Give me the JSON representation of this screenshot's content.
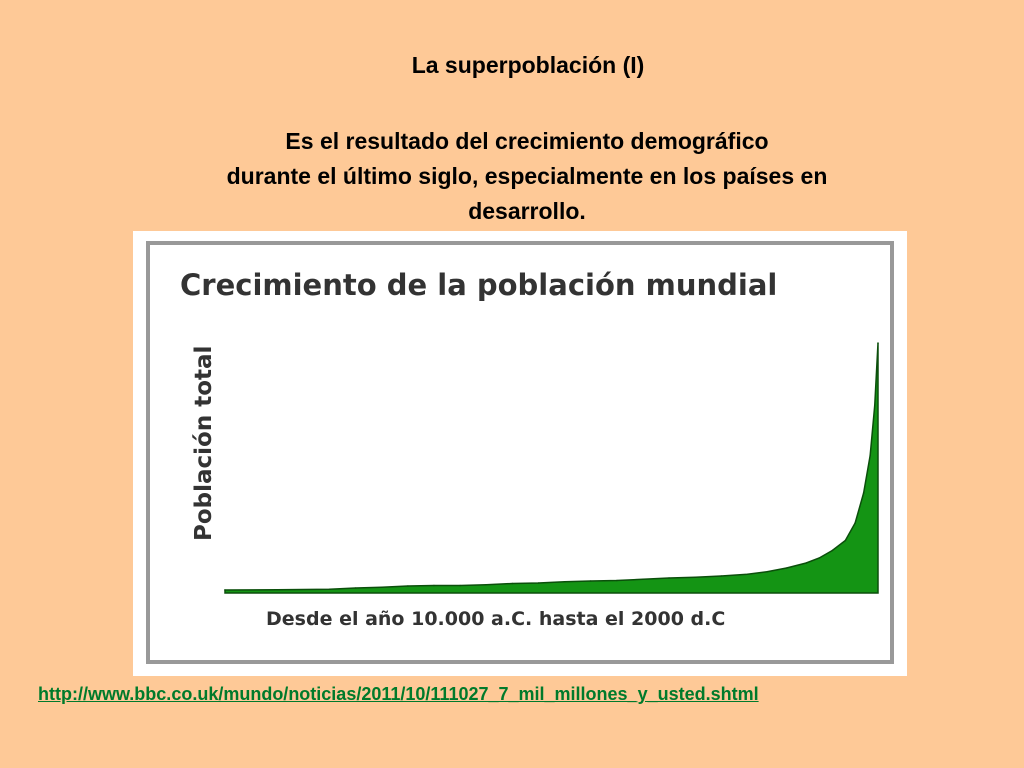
{
  "slide": {
    "title": "La superpoblación (I)",
    "subtitle_lines": [
      "Es el resultado del crecimiento demográfico",
      "durante el último siglo, especialmente en los países en",
      "desarrollo."
    ],
    "source_link": "http://www.bbc.co.uk/mundo/noticias/2011/10/111027_7_mil_millones_y_usted.shtml"
  },
  "colors": {
    "background": "#fec997",
    "area_fill": "#149414",
    "area_stroke": "#0b4f0b",
    "link": "#007a2b"
  },
  "chart_data": {
    "type": "area",
    "title": "Crecimiento de la población mundial",
    "xlabel": "Desde el año 10.000 a.C. hasta el 2000 d.C",
    "ylabel": "Población total",
    "x_axis_ticks": false,
    "y_axis_ticks": false,
    "grid": false,
    "legend": "none",
    "series": [
      {
        "values": [
          0.012,
          0.013,
          0.015,
          0.02,
          0.023,
          0.028,
          0.03,
          0.03,
          0.033,
          0.038,
          0.04,
          0.045,
          0.048,
          0.05,
          0.055,
          0.06,
          0.063,
          0.068,
          0.075,
          0.085,
          0.1,
          0.12,
          0.14,
          0.17,
          0.21,
          0.28,
          0.4,
          0.55,
          0.75,
          1.0
        ]
      }
    ],
    "x_relative": [
      0.0,
      0.08,
      0.16,
      0.2,
      0.24,
      0.28,
      0.32,
      0.36,
      0.4,
      0.44,
      0.48,
      0.52,
      0.56,
      0.6,
      0.64,
      0.68,
      0.72,
      0.76,
      0.8,
      0.83,
      0.86,
      0.89,
      0.91,
      0.93,
      0.95,
      0.965,
      0.978,
      0.988,
      0.995,
      1.0
    ]
  }
}
